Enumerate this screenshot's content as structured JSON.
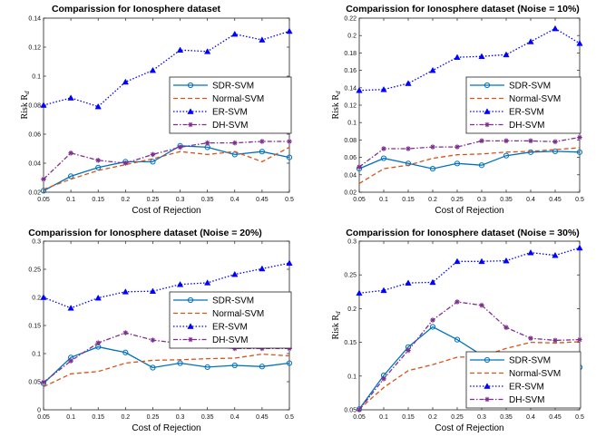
{
  "chart_data": [
    {
      "type": "line",
      "title": "Comparission for Ionosphere dataset",
      "xlabel": "Cost of Rejection",
      "ylabel": "Risk R",
      "ylabel_sub": "d",
      "x": [
        0.05,
        0.1,
        0.15,
        0.2,
        0.25,
        0.3,
        0.35,
        0.4,
        0.45,
        0.5
      ],
      "x_ticks": [
        "0.05",
        "0.1",
        "0.15",
        "0.2",
        "0.25",
        "0.3",
        "0.35",
        "0.4",
        "0.45",
        "0.5"
      ],
      "xlim": [
        0.05,
        0.5
      ],
      "ylim": [
        0.02,
        0.14
      ],
      "y_ticks": [
        "0.02",
        "0.04",
        "0.06",
        "0.08",
        "0.1",
        "0.12",
        "0.14"
      ],
      "y_tick_values": [
        0.02,
        0.04,
        0.06,
        0.08,
        0.1,
        0.12,
        0.14
      ],
      "legend_position": "center-right",
      "series": [
        {
          "name": "SDR-SVM",
          "values": [
            0.021,
            0.031,
            0.037,
            0.041,
            0.041,
            0.052,
            0.051,
            0.046,
            0.048,
            0.044
          ]
        },
        {
          "name": "Normal-SVM",
          "values": [
            0.022,
            0.029,
            0.035,
            0.039,
            0.043,
            0.048,
            0.046,
            0.048,
            0.041,
            0.051
          ]
        },
        {
          "name": "ER-SVM",
          "values": [
            0.08,
            0.085,
            0.079,
            0.096,
            0.104,
            0.118,
            0.117,
            0.129,
            0.125,
            0.131
          ]
        },
        {
          "name": "DH-SVM",
          "values": [
            0.029,
            0.047,
            0.042,
            0.04,
            0.046,
            0.051,
            0.054,
            0.054,
            0.055,
            0.055
          ]
        }
      ]
    },
    {
      "type": "line",
      "title": "Comparission for Ionosphere dataset (Noise = 10%)",
      "xlabel": "Cost of Rejection",
      "ylabel": "Risk R",
      "ylabel_sub": "d",
      "x": [
        0.05,
        0.1,
        0.15,
        0.2,
        0.25,
        0.3,
        0.35,
        0.4,
        0.45,
        0.5
      ],
      "x_ticks": [
        "0.05",
        "0.1",
        "0.15",
        "0.2",
        "0.25",
        "0.3",
        "0.35",
        "0.4",
        "0.45",
        "0.5"
      ],
      "xlim": [
        0.05,
        0.5
      ],
      "ylim": [
        0.02,
        0.22
      ],
      "y_ticks": [
        "0.02",
        "0.04",
        "0.06",
        "0.08",
        "0.1",
        "0.12",
        "0.14",
        "0.16",
        "0.18",
        "0.2",
        "0.22"
      ],
      "y_tick_values": [
        0.02,
        0.04,
        0.06,
        0.08,
        0.1,
        0.12,
        0.14,
        0.16,
        0.18,
        0.2,
        0.22
      ],
      "legend_position": "center-right",
      "series": [
        {
          "name": "SDR-SVM",
          "values": [
            0.047,
            0.059,
            0.053,
            0.047,
            0.053,
            0.051,
            0.062,
            0.066,
            0.067,
            0.066
          ]
        },
        {
          "name": "Normal-SVM",
          "values": [
            0.03,
            0.047,
            0.051,
            0.059,
            0.063,
            0.064,
            0.066,
            0.067,
            0.069,
            0.071
          ]
        },
        {
          "name": "ER-SVM",
          "values": [
            0.137,
            0.138,
            0.145,
            0.16,
            0.175,
            0.176,
            0.178,
            0.193,
            0.208,
            0.191
          ]
        },
        {
          "name": "DH-SVM",
          "values": [
            0.049,
            0.07,
            0.07,
            0.072,
            0.072,
            0.079,
            0.079,
            0.079,
            0.078,
            0.083
          ]
        }
      ]
    },
    {
      "type": "line",
      "title": "Comparission for Ionosphere dataset (Noise = 20%)",
      "xlabel": "Cost of Rejection",
      "ylabel": "",
      "ylabel_sub": "",
      "x": [
        0.05,
        0.1,
        0.15,
        0.2,
        0.25,
        0.3,
        0.35,
        0.4,
        0.45,
        0.5
      ],
      "x_ticks": [
        "0.05",
        "0.1",
        "0.15",
        "0.2",
        "0.25",
        "0.3",
        "0.35",
        "0.4",
        "0.45",
        "0.5"
      ],
      "xlim": [
        0.05,
        0.5
      ],
      "ylim": [
        0,
        0.3
      ],
      "y_ticks": [
        "0",
        "0.05",
        "0.1",
        "0.15",
        "0.2",
        "0.25",
        "0.3"
      ],
      "y_tick_values": [
        0,
        0.05,
        0.1,
        0.15,
        0.2,
        0.25,
        0.3
      ],
      "legend_position": "center-right",
      "series": [
        {
          "name": "SDR-SVM",
          "values": [
            0.047,
            0.093,
            0.112,
            0.102,
            0.075,
            0.083,
            0.076,
            0.079,
            0.077,
            0.083
          ]
        },
        {
          "name": "Normal-SVM",
          "values": [
            0.041,
            0.064,
            0.068,
            0.083,
            0.088,
            0.089,
            0.091,
            0.092,
            0.099,
            0.096
          ]
        },
        {
          "name": "ER-SVM",
          "values": [
            0.2,
            0.181,
            0.199,
            0.21,
            0.211,
            0.223,
            0.226,
            0.241,
            0.251,
            0.261
          ]
        },
        {
          "name": "DH-SVM",
          "values": [
            0.049,
            0.087,
            0.119,
            0.137,
            0.124,
            0.118,
            0.113,
            0.109,
            0.109,
            0.109
          ]
        }
      ]
    },
    {
      "type": "line",
      "title": "Comparission for Ionosphere dataset (Noise = 30%)",
      "xlabel": "Cost of Rejection",
      "ylabel": "Risk R",
      "ylabel_sub": "d",
      "x": [
        0.05,
        0.1,
        0.15,
        0.2,
        0.25,
        0.3,
        0.35,
        0.4,
        0.45,
        0.5
      ],
      "x_ticks": [
        "0.05",
        "0.1",
        "0.15",
        "0.2",
        "0.25",
        "0.3",
        "0.35",
        "0.4",
        "0.45",
        "0.5"
      ],
      "xlim": [
        0.05,
        0.5
      ],
      "ylim": [
        0.05,
        0.3
      ],
      "y_ticks": [
        "0.05",
        "0.1",
        "0.15",
        "0.2",
        "0.25",
        "0.3"
      ],
      "y_tick_values": [
        0.05,
        0.1,
        0.15,
        0.2,
        0.25,
        0.3
      ],
      "legend_position": "bottom-right",
      "series": [
        {
          "name": "SDR-SVM",
          "values": [
            0.051,
            0.101,
            0.143,
            0.173,
            0.154,
            0.131,
            0.112,
            0.112,
            0.124,
            0.113
          ]
        },
        {
          "name": "Normal-SVM",
          "values": [
            0.051,
            0.083,
            0.108,
            0.117,
            0.128,
            0.129,
            0.141,
            0.15,
            0.149,
            0.151
          ]
        },
        {
          "name": "ER-SVM",
          "values": [
            0.223,
            0.227,
            0.238,
            0.239,
            0.27,
            0.27,
            0.271,
            0.283,
            0.279,
            0.29
          ]
        },
        {
          "name": "DH-SVM",
          "values": [
            0.05,
            0.096,
            0.138,
            0.183,
            0.21,
            0.205,
            0.172,
            0.156,
            0.153,
            0.154
          ]
        }
      ]
    }
  ],
  "series_styles": [
    {
      "color": "#0072BD",
      "dash": "",
      "marker": "circle"
    },
    {
      "color": "#D95319",
      "dash": "5,3",
      "marker": "none"
    },
    {
      "color": "#0000FF",
      "dash": "1.5,2",
      "marker": "triangle"
    },
    {
      "color": "#7E2F8E",
      "dash": "5,2,1.5,2",
      "marker": "star"
    }
  ]
}
